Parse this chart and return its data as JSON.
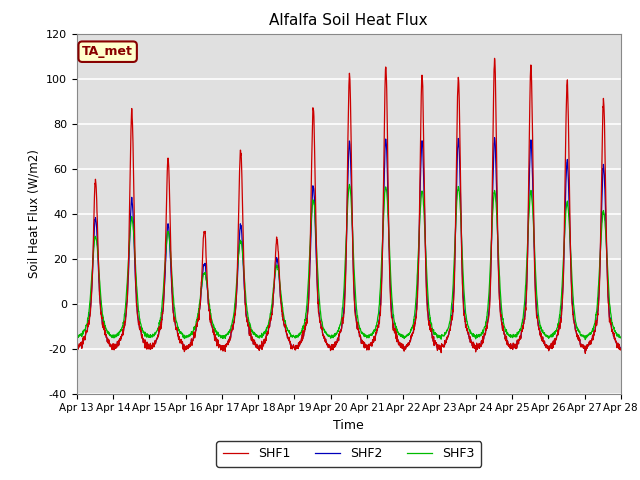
{
  "title": "Alfalfa Soil Heat Flux",
  "ylabel": "Soil Heat Flux (W/m2)",
  "xlabel": "Time",
  "ylim": [
    -40,
    120
  ],
  "yticks": [
    -40,
    -20,
    0,
    20,
    40,
    60,
    80,
    100,
    120
  ],
  "plot_bg_color": "#e0e0e0",
  "grid_color": "white",
  "shf1_color": "#cc0000",
  "shf2_color": "#0000bb",
  "shf3_color": "#00bb00",
  "legend_labels": [
    "SHF1",
    "SHF2",
    "SHF3"
  ],
  "annotation_text": "TA_met",
  "annotation_color": "#880000",
  "annotation_bg": "#ffffcc",
  "x_tick_labels": [
    "Apr 13",
    "Apr 14",
    "Apr 15",
    "Apr 16",
    "Apr 17",
    "Apr 18",
    "Apr 19",
    "Apr 20",
    "Apr 21",
    "Apr 22",
    "Apr 23",
    "Apr 24",
    "Apr 25",
    "Apr 26",
    "Apr 27",
    "Apr 28"
  ],
  "shf1_peaks": [
    55,
    85,
    64,
    33,
    68,
    29,
    87,
    102,
    105,
    101,
    100,
    108,
    105,
    98,
    90
  ],
  "shf2_peaks": [
    38,
    46,
    35,
    18,
    35,
    20,
    52,
    72,
    73,
    72,
    73,
    73,
    72,
    63,
    61
  ],
  "shf3_peaks": [
    32,
    40,
    34,
    16,
    30,
    19,
    48,
    55,
    54,
    52,
    54,
    52,
    52,
    47,
    43
  ],
  "night_base": -20,
  "n_days": 15,
  "ppd": 144
}
